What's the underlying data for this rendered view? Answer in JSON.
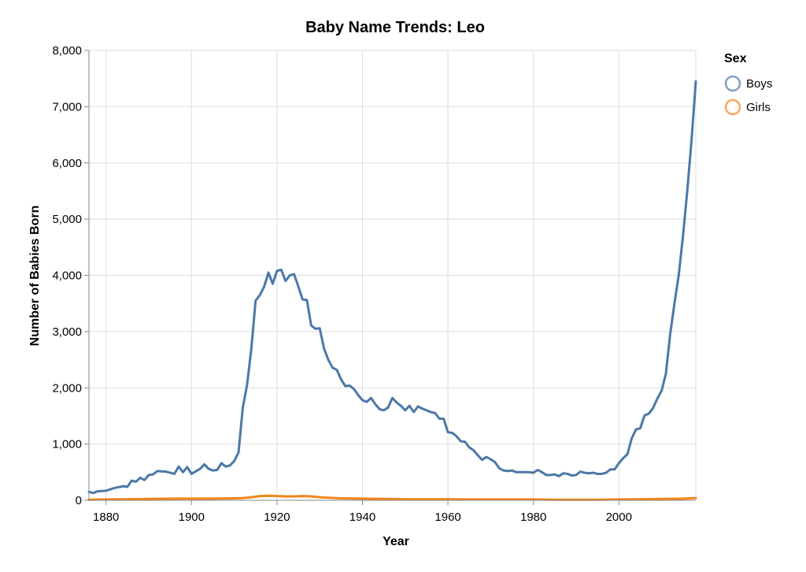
{
  "chart_data": {
    "type": "line",
    "title": "Baby Name Trends: Leo",
    "xlabel": "Year",
    "ylabel": "Number of Babies Born",
    "xlim": [
      1876,
      2018
    ],
    "ylim": [
      0,
      8000
    ],
    "x_ticks": [
      1880,
      1900,
      1920,
      1940,
      1960,
      1980,
      2000
    ],
    "y_ticks": [
      0,
      1000,
      2000,
      3000,
      4000,
      5000,
      6000,
      7000,
      8000
    ],
    "x_tick_labels": [
      "1880",
      "1900",
      "1920",
      "1940",
      "1960",
      "1980",
      "2000"
    ],
    "y_tick_labels": [
      "0",
      "1,000",
      "2,000",
      "3,000",
      "4,000",
      "5,000",
      "6,000",
      "7,000",
      "8,000"
    ],
    "grid": true,
    "legend": {
      "title": "Sex",
      "position": "right"
    },
    "series": [
      {
        "name": "Boys",
        "color": "#4c78a8",
        "points": [
          [
            1876,
            150
          ],
          [
            1877,
            130
          ],
          [
            1878,
            160
          ],
          [
            1880,
            170
          ],
          [
            1882,
            220
          ],
          [
            1884,
            250
          ],
          [
            1885,
            240
          ],
          [
            1886,
            350
          ],
          [
            1887,
            330
          ],
          [
            1888,
            400
          ],
          [
            1889,
            360
          ],
          [
            1890,
            450
          ],
          [
            1891,
            460
          ],
          [
            1892,
            520
          ],
          [
            1894,
            510
          ],
          [
            1896,
            470
          ],
          [
            1897,
            600
          ],
          [
            1898,
            500
          ],
          [
            1899,
            590
          ],
          [
            1900,
            470
          ],
          [
            1902,
            560
          ],
          [
            1903,
            640
          ],
          [
            1904,
            560
          ],
          [
            1905,
            530
          ],
          [
            1906,
            540
          ],
          [
            1907,
            660
          ],
          [
            1908,
            600
          ],
          [
            1909,
            620
          ],
          [
            1910,
            700
          ],
          [
            1911,
            850
          ],
          [
            1912,
            1650
          ],
          [
            1913,
            2050
          ],
          [
            1914,
            2700
          ],
          [
            1915,
            3550
          ],
          [
            1916,
            3650
          ],
          [
            1917,
            3800
          ],
          [
            1918,
            4050
          ],
          [
            1919,
            3850
          ],
          [
            1920,
            4080
          ],
          [
            1921,
            4100
          ],
          [
            1922,
            3900
          ],
          [
            1923,
            4000
          ],
          [
            1924,
            4020
          ],
          [
            1925,
            3800
          ],
          [
            1926,
            3570
          ],
          [
            1927,
            3560
          ],
          [
            1928,
            3110
          ],
          [
            1929,
            3050
          ],
          [
            1930,
            3060
          ],
          [
            1931,
            2700
          ],
          [
            1932,
            2500
          ],
          [
            1933,
            2360
          ],
          [
            1934,
            2320
          ],
          [
            1935,
            2150
          ],
          [
            1936,
            2030
          ],
          [
            1937,
            2040
          ],
          [
            1938,
            1980
          ],
          [
            1939,
            1870
          ],
          [
            1940,
            1780
          ],
          [
            1941,
            1750
          ],
          [
            1942,
            1820
          ],
          [
            1943,
            1710
          ],
          [
            1944,
            1620
          ],
          [
            1945,
            1600
          ],
          [
            1946,
            1650
          ],
          [
            1947,
            1820
          ],
          [
            1948,
            1740
          ],
          [
            1949,
            1680
          ],
          [
            1950,
            1600
          ],
          [
            1951,
            1680
          ],
          [
            1952,
            1570
          ],
          [
            1953,
            1670
          ],
          [
            1954,
            1630
          ],
          [
            1955,
            1600
          ],
          [
            1956,
            1570
          ],
          [
            1957,
            1550
          ],
          [
            1958,
            1450
          ],
          [
            1959,
            1450
          ],
          [
            1960,
            1210
          ],
          [
            1961,
            1200
          ],
          [
            1962,
            1140
          ],
          [
            1963,
            1050
          ],
          [
            1964,
            1040
          ],
          [
            1965,
            940
          ],
          [
            1966,
            890
          ],
          [
            1967,
            800
          ],
          [
            1968,
            720
          ],
          [
            1969,
            770
          ],
          [
            1970,
            730
          ],
          [
            1971,
            680
          ],
          [
            1972,
            570
          ],
          [
            1973,
            530
          ],
          [
            1974,
            520
          ],
          [
            1975,
            530
          ],
          [
            1976,
            500
          ],
          [
            1977,
            500
          ],
          [
            1978,
            500
          ],
          [
            1979,
            500
          ],
          [
            1980,
            490
          ],
          [
            1981,
            540
          ],
          [
            1982,
            500
          ],
          [
            1983,
            450
          ],
          [
            1984,
            450
          ],
          [
            1985,
            460
          ],
          [
            1986,
            430
          ],
          [
            1987,
            480
          ],
          [
            1988,
            470
          ],
          [
            1989,
            440
          ],
          [
            1990,
            450
          ],
          [
            1991,
            510
          ],
          [
            1992,
            490
          ],
          [
            1993,
            480
          ],
          [
            1994,
            490
          ],
          [
            1995,
            470
          ],
          [
            1996,
            470
          ],
          [
            1997,
            490
          ],
          [
            1998,
            550
          ],
          [
            1999,
            550
          ],
          [
            2000,
            660
          ],
          [
            2001,
            750
          ],
          [
            2002,
            820
          ],
          [
            2003,
            1100
          ],
          [
            2004,
            1260
          ],
          [
            2005,
            1280
          ],
          [
            2006,
            1510
          ],
          [
            2007,
            1540
          ],
          [
            2008,
            1640
          ],
          [
            2009,
            1810
          ],
          [
            2010,
            1950
          ],
          [
            2011,
            2250
          ],
          [
            2012,
            2950
          ],
          [
            2013,
            3500
          ],
          [
            2014,
            4000
          ],
          [
            2015,
            4700
          ],
          [
            2016,
            5500
          ],
          [
            2017,
            6400
          ],
          [
            2018,
            7450
          ]
        ]
      },
      {
        "name": "Girls",
        "color": "#f58518",
        "points": [
          [
            1876,
            10
          ],
          [
            1880,
            15
          ],
          [
            1885,
            20
          ],
          [
            1890,
            25
          ],
          [
            1895,
            30
          ],
          [
            1900,
            30
          ],
          [
            1905,
            30
          ],
          [
            1910,
            35
          ],
          [
            1912,
            40
          ],
          [
            1914,
            55
          ],
          [
            1916,
            75
          ],
          [
            1918,
            80
          ],
          [
            1920,
            75
          ],
          [
            1922,
            70
          ],
          [
            1924,
            70
          ],
          [
            1926,
            75
          ],
          [
            1928,
            70
          ],
          [
            1930,
            55
          ],
          [
            1932,
            45
          ],
          [
            1935,
            35
          ],
          [
            1940,
            30
          ],
          [
            1945,
            25
          ],
          [
            1950,
            20
          ],
          [
            1955,
            20
          ],
          [
            1960,
            20
          ],
          [
            1965,
            15
          ],
          [
            1970,
            15
          ],
          [
            1975,
            15
          ],
          [
            1980,
            15
          ],
          [
            1985,
            10
          ],
          [
            1990,
            10
          ],
          [
            1995,
            10
          ],
          [
            2000,
            15
          ],
          [
            2005,
            20
          ],
          [
            2010,
            25
          ],
          [
            2015,
            30
          ],
          [
            2018,
            40
          ]
        ]
      }
    ]
  }
}
